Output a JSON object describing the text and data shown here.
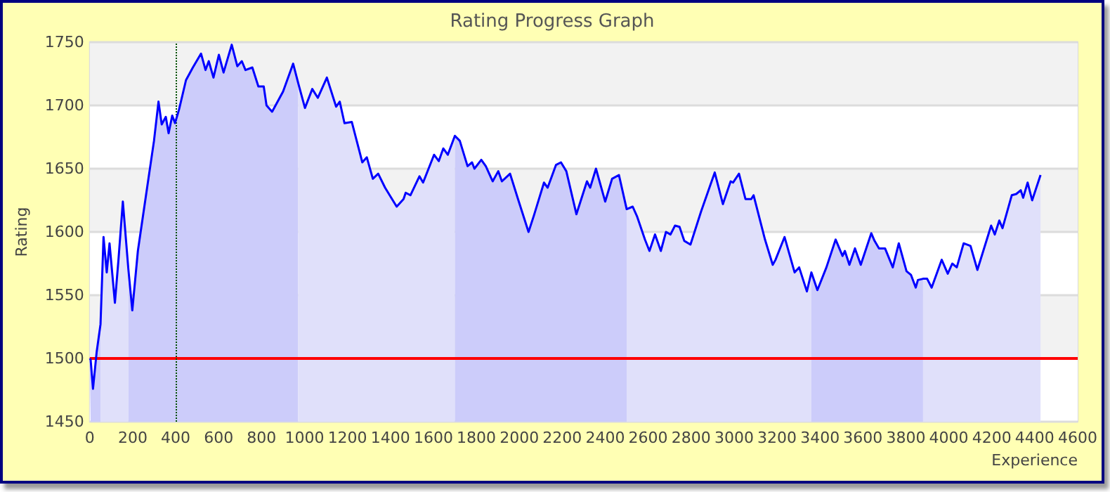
{
  "chart_data": {
    "type": "line",
    "title": "Rating Progress Graph",
    "xlabel": "Experience",
    "ylabel": "Rating",
    "xlim": [
      0,
      4600
    ],
    "xticks": [
      0,
      200,
      400,
      600,
      800,
      1000,
      1200,
      1400,
      1600,
      1800,
      2000,
      2200,
      2400,
      2600,
      2800,
      3000,
      3200,
      3400,
      3600,
      3800,
      4000,
      4200,
      4400,
      4600
    ],
    "ylim": [
      1450,
      1750
    ],
    "yticks": [
      1450,
      1500,
      1550,
      1600,
      1650,
      1700,
      1750
    ],
    "grid": "y",
    "marker": "none",
    "line_style": "solid",
    "series": [
      {
        "type": "area",
        "color": "#ccccfa",
        "x": [
          0,
          4,
          15,
          32,
          50
        ],
        "values": [
          1500,
          1499,
          1476,
          1505,
          1527
        ]
      },
      {
        "type": "area",
        "color": "#e0e0fa",
        "x": [
          50,
          64,
          79,
          92,
          117,
          134,
          154,
          180
        ],
        "values": [
          1527,
          1596,
          1568,
          1591,
          1544,
          1579,
          1624,
          1570
        ]
      },
      {
        "type": "area",
        "color": "#ccccfa",
        "x": [
          180,
          198,
          224,
          267,
          299,
          320,
          335,
          354,
          367,
          384,
          397,
          416,
          448,
          480,
          518,
          539,
          554,
          576,
          601,
          623,
          661,
          687,
          708,
          725,
          757,
          785,
          810,
          823,
          849,
          900,
          947,
          970
        ],
        "values": [
          1570,
          1538,
          1585,
          1635,
          1672,
          1703,
          1685,
          1691,
          1678,
          1692,
          1686,
          1697,
          1720,
          1730,
          1741,
          1728,
          1735,
          1722,
          1740,
          1726,
          1748,
          1731,
          1735,
          1728,
          1730,
          1715,
          1715,
          1700,
          1695,
          1711,
          1733,
          1718
        ]
      },
      {
        "type": "area",
        "color": "#e0e0fa",
        "x": [
          970,
          1002,
          1036,
          1062,
          1104,
          1147,
          1164,
          1186,
          1220,
          1269,
          1290,
          1318,
          1343,
          1375,
          1429,
          1461,
          1471,
          1493,
          1535,
          1552,
          1603,
          1625,
          1646,
          1667,
          1700
        ],
        "values": [
          1718,
          1698,
          1713,
          1706,
          1722,
          1699,
          1703,
          1686,
          1687,
          1655,
          1659,
          1642,
          1646,
          1635,
          1620,
          1626,
          1631,
          1629,
          1644,
          1639,
          1661,
          1656,
          1666,
          1661,
          1676
        ]
      },
      {
        "type": "area",
        "color": "#ccccfa",
        "x": [
          1700,
          1723,
          1759,
          1780,
          1791,
          1823,
          1844,
          1876,
          1902,
          1919,
          1957,
          1994,
          2043,
          2068,
          2115,
          2132,
          2171,
          2194,
          2219,
          2266,
          2315,
          2330,
          2357,
          2400,
          2432,
          2464,
          2500
        ],
        "values": [
          1676,
          1672,
          1652,
          1655,
          1650,
          1657,
          1652,
          1640,
          1648,
          1640,
          1646,
          1626,
          1600,
          1613,
          1639,
          1635,
          1653,
          1655,
          1648,
          1614,
          1640,
          1635,
          1650,
          1624,
          1642,
          1645,
          1618
        ]
      },
      {
        "type": "area",
        "color": "#e0e0fa",
        "x": [
          2500,
          2528,
          2549,
          2585,
          2606,
          2632,
          2659,
          2683,
          2704,
          2725,
          2746,
          2768,
          2797,
          2846,
          2910,
          2948,
          2984,
          2995,
          3023,
          3053,
          3080,
          3091,
          3144,
          3180,
          3193,
          3235,
          3282,
          3303,
          3339,
          3360
        ],
        "values": [
          1618,
          1620,
          1612,
          1594,
          1585,
          1598,
          1585,
          1600,
          1598,
          1605,
          1604,
          1593,
          1590,
          1616,
          1647,
          1622,
          1640,
          1639,
          1646,
          1626,
          1626,
          1629,
          1594,
          1574,
          1578,
          1596,
          1568,
          1572,
          1553,
          1568
        ]
      },
      {
        "type": "area",
        "color": "#ccccfa",
        "x": [
          3360,
          3388,
          3430,
          3473,
          3505,
          3516,
          3537,
          3563,
          3590,
          3639,
          3654,
          3675,
          3703,
          3739,
          3767,
          3803,
          3824,
          3846,
          3856,
          3880
        ],
        "values": [
          1568,
          1554,
          1572,
          1594,
          1581,
          1585,
          1574,
          1587,
          1574,
          1599,
          1593,
          1587,
          1587,
          1572,
          1591,
          1569,
          1566,
          1556,
          1562,
          1563
        ]
      },
      {
        "type": "area",
        "color": "#e0e0fa",
        "x": [
          3880,
          3899,
          3920,
          3967,
          3995,
          4016,
          4037,
          4069,
          4101,
          4133,
          4197,
          4214,
          4235,
          4250,
          4293,
          4314,
          4335,
          4346,
          4367,
          4388,
          4427
        ],
        "values": [
          1563,
          1563,
          1556,
          1578,
          1567,
          1575,
          1572,
          1591,
          1589,
          1570,
          1605,
          1598,
          1609,
          1603,
          1629,
          1630,
          1633,
          1627,
          1639,
          1625,
          1645
        ]
      },
      {
        "color": "#0000ff",
        "x": [
          0,
          4,
          15,
          32,
          50,
          64,
          79,
          92,
          117,
          134,
          154,
          180,
          198,
          224,
          267,
          299,
          320,
          335,
          354,
          367,
          384,
          397,
          416,
          448,
          480,
          518,
          539,
          554,
          576,
          601,
          623,
          661,
          687,
          708,
          725,
          757,
          785,
          810,
          823,
          849,
          900,
          947,
          970,
          1002,
          1036,
          1062,
          1104,
          1147,
          1164,
          1186,
          1220,
          1269,
          1290,
          1318,
          1343,
          1375,
          1429,
          1461,
          1471,
          1493,
          1535,
          1552,
          1603,
          1625,
          1646,
          1667,
          1700,
          1723,
          1759,
          1780,
          1791,
          1823,
          1844,
          1876,
          1902,
          1919,
          1957,
          1994,
          2043,
          2068,
          2115,
          2132,
          2171,
          2194,
          2219,
          2266,
          2315,
          2330,
          2357,
          2400,
          2432,
          2464,
          2500,
          2528,
          2549,
          2585,
          2606,
          2632,
          2659,
          2683,
          2704,
          2725,
          2746,
          2768,
          2797,
          2846,
          2910,
          2948,
          2984,
          2995,
          3023,
          3053,
          3080,
          3091,
          3144,
          3180,
          3193,
          3235,
          3282,
          3303,
          3339,
          3360,
          3388,
          3430,
          3473,
          3505,
          3516,
          3537,
          3563,
          3590,
          3639,
          3654,
          3675,
          3703,
          3739,
          3767,
          3803,
          3824,
          3846,
          3856,
          3880,
          3899,
          3920,
          3967,
          3995,
          4016,
          4037,
          4069,
          4101,
          4133,
          4197,
          4214,
          4235,
          4250,
          4293,
          4314,
          4335,
          4346,
          4367,
          4388,
          4427
        ],
        "values": [
          1500,
          1499,
          1476,
          1505,
          1527,
          1596,
          1568,
          1591,
          1544,
          1579,
          1624,
          1570,
          1538,
          1585,
          1635,
          1672,
          1703,
          1685,
          1691,
          1678,
          1692,
          1686,
          1697,
          1720,
          1730,
          1741,
          1728,
          1735,
          1722,
          1740,
          1726,
          1748,
          1731,
          1735,
          1728,
          1730,
          1715,
          1715,
          1700,
          1695,
          1711,
          1733,
          1718,
          1698,
          1713,
          1706,
          1722,
          1699,
          1703,
          1686,
          1687,
          1655,
          1659,
          1642,
          1646,
          1635,
          1620,
          1626,
          1631,
          1629,
          1644,
          1639,
          1661,
          1656,
          1666,
          1661,
          1676,
          1672,
          1652,
          1655,
          1650,
          1657,
          1652,
          1640,
          1648,
          1640,
          1646,
          1626,
          1600,
          1613,
          1639,
          1635,
          1653,
          1655,
          1648,
          1614,
          1640,
          1635,
          1650,
          1624,
          1642,
          1645,
          1618,
          1620,
          1612,
          1594,
          1585,
          1598,
          1585,
          1600,
          1598,
          1605,
          1604,
          1593,
          1590,
          1616,
          1647,
          1622,
          1640,
          1639,
          1646,
          1626,
          1626,
          1629,
          1594,
          1574,
          1578,
          1596,
          1568,
          1572,
          1553,
          1568,
          1554,
          1572,
          1594,
          1581,
          1585,
          1574,
          1587,
          1574,
          1599,
          1593,
          1587,
          1587,
          1572,
          1591,
          1569,
          1566,
          1556,
          1562,
          1563,
          1563,
          1556,
          1578,
          1567,
          1575,
          1572,
          1591,
          1589,
          1570,
          1605,
          1598,
          1609,
          1603,
          1629,
          1630,
          1633,
          1627,
          1639,
          1625,
          1645
        ]
      }
    ],
    "ref_lines": [
      {
        "axis": "y",
        "value": 1500,
        "color": "#ff0000",
        "line_style": "solid"
      },
      {
        "axis": "x",
        "value": 400,
        "color": "#005000",
        "line_style": "dotted"
      }
    ]
  }
}
